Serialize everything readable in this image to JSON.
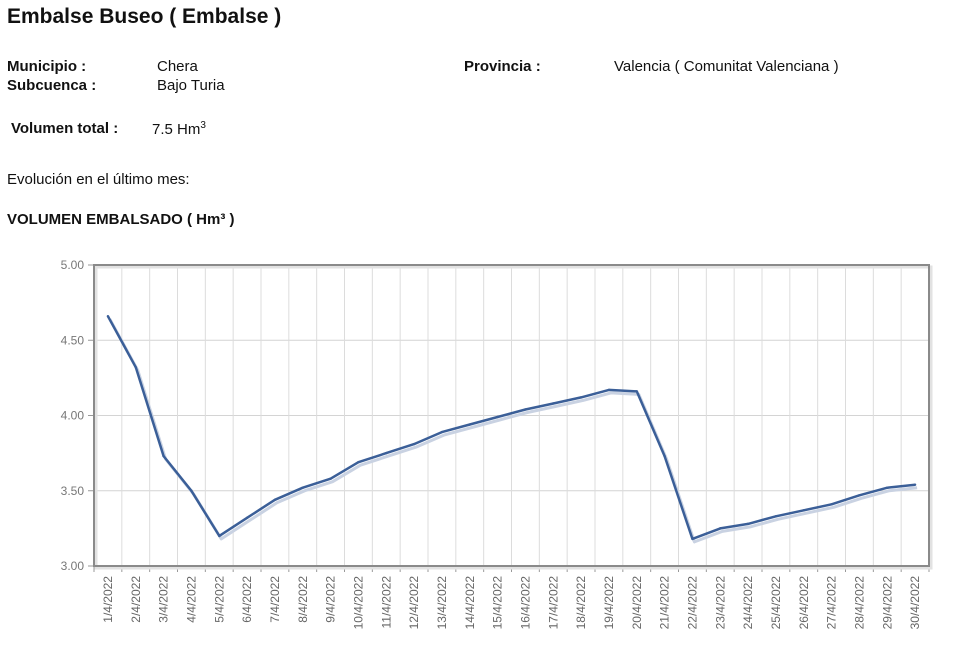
{
  "header": {
    "title": "Embalse Buseo ( Embalse )"
  },
  "info": {
    "municipio_label": "Municipio :",
    "municipio_value": "Chera",
    "subcuenca_label": "Subcuenca :",
    "subcuenca_value": "Bajo Turia",
    "provincia_label": "Provincia :",
    "provincia_value": "Valencia ( Comunitat Valenciana )",
    "volumen_label": "Volumen total :",
    "volumen_value": "7.5 Hm",
    "volumen_exp": "3"
  },
  "evolution_text": "Evolución en el último mes:",
  "chart_heading": "VOLUMEN EMBALSADO ( Hm³ )",
  "chart_data": {
    "type": "line",
    "categories": [
      "1/4/2022",
      "2/4/2022",
      "3/4/2022",
      "4/4/2022",
      "5/4/2022",
      "6/4/2022",
      "7/4/2022",
      "8/4/2022",
      "9/4/2022",
      "10/4/2022",
      "11/4/2022",
      "12/4/2022",
      "13/4/2022",
      "14/4/2022",
      "15/4/2022",
      "16/4/2022",
      "17/4/2022",
      "18/4/2022",
      "19/4/2022",
      "20/4/2022",
      "21/4/2022",
      "22/4/2022",
      "23/4/2022",
      "24/4/2022",
      "25/4/2022",
      "26/4/2022",
      "27/4/2022",
      "28/4/2022",
      "29/4/2022",
      "30/4/2022"
    ],
    "values": [
      4.66,
      4.32,
      3.73,
      3.5,
      3.2,
      3.32,
      3.44,
      3.52,
      3.58,
      3.69,
      3.75,
      3.81,
      3.89,
      3.94,
      3.99,
      4.04,
      4.08,
      4.12,
      4.17,
      4.16,
      3.73,
      3.18,
      3.25,
      3.28,
      3.33,
      3.37,
      3.41,
      3.47,
      3.52,
      3.54
    ],
    "yticks": [
      "5.00",
      "4.50",
      "4.00",
      "3.50",
      "3.00"
    ],
    "ylim": [
      3.0,
      5.0
    ],
    "line_color": "#3b5f98",
    "grid": true,
    "title": "",
    "xlabel": "",
    "ylabel": ""
  }
}
